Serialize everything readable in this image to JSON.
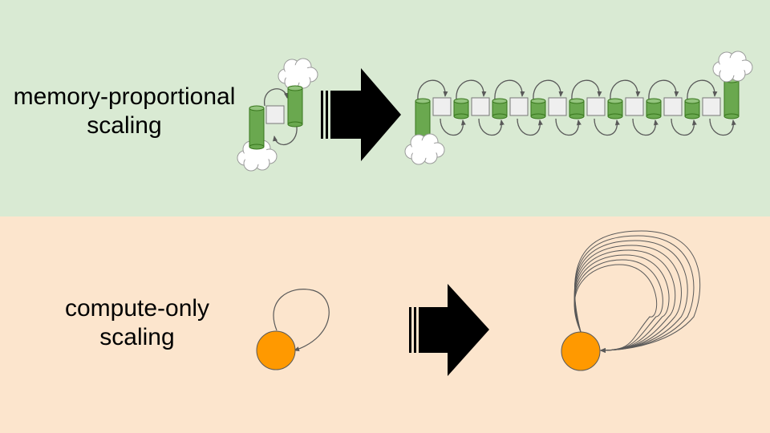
{
  "colors": {
    "top_background": "#d9ead3",
    "bottom_background": "#fce5cd",
    "memory_cylinder": "#6aa84f",
    "buffer_square": "#efefef",
    "compute_node": "#ff9900",
    "arrow": "#000000",
    "loop_stroke": "#595959"
  },
  "rows": [
    {
      "label_lines": [
        "memory-proportional",
        "scaling"
      ],
      "small_loops": 1,
      "large_loop_count": 7
    },
    {
      "label_lines": [
        "compute-only",
        "scaling"
      ],
      "small_loops": 1,
      "large_loop_count": 8
    }
  ],
  "icons": [
    "cloud-icon",
    "memory-cylinder-icon",
    "buffer-square-icon",
    "compute-node-icon",
    "scale-arrow-icon",
    "recurrent-loop-icon"
  ]
}
